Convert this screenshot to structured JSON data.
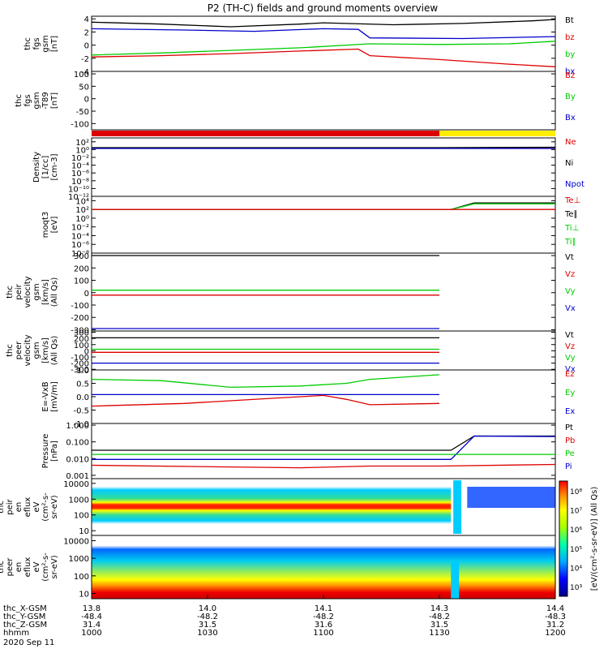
{
  "title": "P2 (TH-C) fields and ground moments overview",
  "date": "2020 Sep 11",
  "colors": {
    "black": "#000000",
    "red": "#dd0000",
    "green": "#00cc00",
    "blue": "#0000cc",
    "yellow": "#ffee00"
  },
  "chart_data": {
    "type": "line",
    "panels": [
      {
        "id": "fgs",
        "ylabel": [
          "thc",
          "fgs",
          "gsm",
          "[nT]"
        ],
        "ylim": [
          -4,
          4.4
        ],
        "ticks": [
          {
            "v": 4,
            "t": "4"
          },
          {
            "v": 2,
            "t": "2"
          },
          {
            "v": 0,
            "t": "0"
          },
          {
            "v": -2,
            "t": "-2"
          },
          {
            "v": -4,
            "t": "-4"
          }
        ],
        "legend": [
          {
            "t": "Bt",
            "c": "black"
          },
          {
            "t": "bz",
            "c": "red"
          },
          {
            "t": "by",
            "c": "green"
          },
          {
            "t": "bx",
            "c": "blue"
          }
        ],
        "series": [
          {
            "name": "Bt",
            "color": "black",
            "x": [
              10.0,
              10.3,
              10.6,
              10.9,
              11.0,
              11.3,
              11.6,
              11.9,
              12.0
            ],
            "y": [
              3.5,
              3.2,
              2.8,
              3.2,
              3.4,
              3.1,
              3.3,
              3.7,
              3.9
            ]
          },
          {
            "name": "bx",
            "color": "blue",
            "x": [
              10.0,
              10.4,
              10.7,
              11.0,
              11.15,
              11.2,
              11.6,
              12.0
            ],
            "y": [
              2.5,
              2.3,
              2.1,
              2.5,
              2.4,
              1.1,
              1.0,
              1.3
            ]
          },
          {
            "name": "by",
            "color": "green",
            "x": [
              10.0,
              10.3,
              10.6,
              10.9,
              11.2,
              11.5,
              11.8,
              12.0
            ],
            "y": [
              -1.5,
              -1.2,
              -0.8,
              -0.4,
              0.2,
              0.1,
              0.2,
              0.6
            ]
          },
          {
            "name": "bz",
            "color": "red",
            "x": [
              10.0,
              10.3,
              10.6,
              10.9,
              11.15,
              11.2,
              11.5,
              11.8,
              12.0
            ],
            "y": [
              -1.8,
              -1.6,
              -1.3,
              -0.9,
              -0.6,
              -1.6,
              -2.2,
              -2.9,
              -3.3
            ]
          }
        ]
      },
      {
        "id": "fgs_t89",
        "ylabel": [
          "thc",
          "fgs",
          "gsm",
          "-T89",
          "[nT]"
        ],
        "ylim": [
          -125,
          110
        ],
        "ticks": [
          {
            "v": 100,
            "t": "100"
          },
          {
            "v": 50,
            "t": "50"
          },
          {
            "v": 0,
            "t": "0"
          },
          {
            "v": -50,
            "t": "-50"
          },
          {
            "v": -100,
            "t": "-100"
          }
        ],
        "legend": [
          {
            "t": "Bz",
            "c": "red"
          },
          {
            "t": "By",
            "c": "green"
          },
          {
            "t": "Bx",
            "c": "blue"
          }
        ],
        "series": []
      },
      {
        "id": "density",
        "ylabel": [
          "Density",
          "[1/cc]",
          "[cm-3]"
        ],
        "ylim": [
          -12,
          3
        ],
        "log": true,
        "ticks": [
          {
            "v": 2,
            "t": "10²"
          },
          {
            "v": 0,
            "t": "10⁰"
          },
          {
            "v": -2,
            "t": "10⁻²"
          },
          {
            "v": -4,
            "t": "10⁻⁴"
          },
          {
            "v": -6,
            "t": "10⁻⁶"
          },
          {
            "v": -8,
            "t": "10⁻⁸"
          },
          {
            "v": -10,
            "t": "10⁻¹⁰"
          },
          {
            "v": -12,
            "t": "10⁻¹²"
          }
        ],
        "legend": [
          {
            "t": "Ne",
            "c": "red"
          },
          {
            "t": "Ni",
            "c": "black"
          },
          {
            "t": "Npot",
            "c": "blue"
          }
        ],
        "series": [
          {
            "name": "Ne",
            "color": "red",
            "x": [
              10.0,
              11.5,
              12.0
            ],
            "y": [
              0.4,
              0.4,
              0.5
            ]
          },
          {
            "name": "Ni",
            "color": "black",
            "x": [
              10.0,
              11.5,
              12.0
            ],
            "y": [
              0.5,
              0.5,
              0.6
            ]
          },
          {
            "name": "Npot",
            "color": "blue",
            "x": [
              10.0,
              11.5,
              12.0
            ],
            "y": [
              0.3,
              0.3,
              0.3
            ]
          }
        ]
      },
      {
        "id": "temp",
        "ylabel": [
          "moqt3",
          "[eV]"
        ],
        "ylim": [
          -8,
          5
        ],
        "log": true,
        "ticks": [
          {
            "v": 4,
            "t": "10⁴"
          },
          {
            "v": 2,
            "t": "10²"
          },
          {
            "v": 0,
            "t": "10⁰"
          },
          {
            "v": -2,
            "t": "10⁻²"
          },
          {
            "v": -4,
            "t": "10⁻⁴"
          },
          {
            "v": -6,
            "t": "10⁻⁶"
          },
          {
            "v": -8,
            "t": "10⁻⁸"
          }
        ],
        "legend": [
          {
            "t": "Te⊥",
            "c": "red"
          },
          {
            "t": "Te∥",
            "c": "black"
          },
          {
            "t": "Ti⊥",
            "c": "green"
          },
          {
            "t": "Ti∥",
            "c": "green"
          }
        ],
        "series": [
          {
            "name": "Ti",
            "color": "black",
            "x": [
              10.0,
              11.55,
              11.65,
              12.0
            ],
            "y": [
              2.0,
              2.0,
              3.5,
              3.5
            ]
          },
          {
            "name": "Te",
            "color": "green",
            "x": [
              10.0,
              11.55,
              11.65,
              12.0
            ],
            "y": [
              2.0,
              2.0,
              3.3,
              3.3
            ]
          },
          {
            "name": "Tex",
            "color": "red",
            "x": [
              10.0,
              12.0
            ],
            "y": [
              2.0,
              2.0
            ]
          }
        ]
      },
      {
        "id": "peir_v",
        "ylabel": [
          "thc",
          "peir",
          "velocity",
          "gsm",
          "[km/s]",
          "(All Qs)"
        ],
        "ylim": [
          -310,
          320
        ],
        "ticks": [
          {
            "v": 300,
            "t": "300"
          },
          {
            "v": 200,
            "t": "200"
          },
          {
            "v": 100,
            "t": "100"
          },
          {
            "v": 0,
            "t": "0"
          },
          {
            "v": -100,
            "t": "-100"
          },
          {
            "v": -200,
            "t": "-200"
          },
          {
            "v": -300,
            "t": "-300"
          }
        ],
        "legend": [
          {
            "t": "Vt",
            "c": "black"
          },
          {
            "t": "Vz",
            "c": "red"
          },
          {
            "t": "Vy",
            "c": "green"
          },
          {
            "t": "Vx",
            "c": "blue"
          }
        ],
        "series": [
          {
            "name": "Vt",
            "color": "black",
            "x": [
              10.0,
              11.5
            ],
            "y": [
              300,
              300
            ]
          },
          {
            "name": "Vy",
            "color": "green",
            "x": [
              10.0,
              11.5
            ],
            "y": [
              20,
              20
            ]
          },
          {
            "name": "Vz",
            "color": "red",
            "x": [
              10.0,
              11.5
            ],
            "y": [
              -20,
              -20
            ]
          },
          {
            "name": "Vx",
            "color": "blue",
            "x": [
              10.0,
              11.5
            ],
            "y": [
              -290,
              -290
            ]
          }
        ]
      },
      {
        "id": "peer_v",
        "ylabel": [
          "thc",
          "peer",
          "velocity",
          "gsm",
          "[km/s]",
          "(All Qs)"
        ],
        "ylim": [
          -310,
          320
        ],
        "ticks": [
          {
            "v": 300,
            "t": "300"
          },
          {
            "v": 200,
            "t": "200"
          },
          {
            "v": 100,
            "t": "100"
          },
          {
            "v": 0,
            "t": "0"
          },
          {
            "v": -100,
            "t": "-100"
          },
          {
            "v": -200,
            "t": "-200"
          },
          {
            "v": -300,
            "t": "-300"
          }
        ],
        "legend": [
          {
            "t": "Vt",
            "c": "black"
          },
          {
            "t": "Vz",
            "c": "red"
          },
          {
            "t": "Vy",
            "c": "green"
          },
          {
            "t": "Vx",
            "c": "blue"
          }
        ],
        "series": [
          {
            "name": "Vt",
            "color": "black",
            "x": [
              10.0,
              11.5
            ],
            "y": [
              210,
              210
            ]
          },
          {
            "name": "Vy",
            "color": "green",
            "x": [
              10.0,
              11.5
            ],
            "y": [
              25,
              25
            ]
          },
          {
            "name": "Vz",
            "color": "red",
            "x": [
              10.0,
              11.5
            ],
            "y": [
              -25,
              -25
            ]
          },
          {
            "name": "Vx",
            "color": "blue",
            "x": [
              10.0,
              11.5
            ],
            "y": [
              -200,
              -200
            ]
          }
        ]
      },
      {
        "id": "e_field",
        "ylabel": [
          "E=-VxB",
          "[mV/m]"
        ],
        "ylim": [
          -1.0,
          1.0
        ],
        "ticks": [
          {
            "v": 1.0,
            "t": "1.0"
          },
          {
            "v": 0.5,
            "t": "0.5"
          },
          {
            "v": 0.0,
            "t": "0.0"
          },
          {
            "v": -0.5,
            "t": "-0.5"
          },
          {
            "v": -1.0,
            "t": "-1.0"
          }
        ],
        "legend": [
          {
            "t": "Ez",
            "c": "red"
          },
          {
            "t": "Ey",
            "c": "green"
          },
          {
            "t": "Ex",
            "c": "blue"
          }
        ],
        "series": [
          {
            "name": "Ey",
            "color": "green",
            "x": [
              10.0,
              10.3,
              10.6,
              10.9,
              11.1,
              11.2,
              11.5
            ],
            "y": [
              0.65,
              0.6,
              0.35,
              0.4,
              0.5,
              0.65,
              0.82
            ]
          },
          {
            "name": "Ex",
            "color": "blue",
            "x": [
              10.0,
              11.5
            ],
            "y": [
              0.08,
              0.08
            ]
          },
          {
            "name": "Ez",
            "color": "red",
            "x": [
              10.0,
              10.4,
              10.8,
              11.0,
              11.1,
              11.2,
              11.5
            ],
            "y": [
              -0.35,
              -0.25,
              -0.05,
              0.05,
              -0.1,
              -0.3,
              -0.25
            ]
          }
        ]
      },
      {
        "id": "pressure",
        "ylabel": [
          "Pressure",
          "[nPa]"
        ],
        "ylim": [
          -3.2,
          0.1
        ],
        "log": true,
        "ticks": [
          {
            "v": 0,
            "t": "1.000"
          },
          {
            "v": -1,
            "t": "0.100"
          },
          {
            "v": -2,
            "t": "0.010"
          },
          {
            "v": -3,
            "t": "0.001"
          }
        ],
        "legend": [
          {
            "t": "Pt",
            "c": "black"
          },
          {
            "t": "Pb",
            "c": "red"
          },
          {
            "t": "Pe",
            "c": "green"
          },
          {
            "t": "Pi",
            "c": "blue"
          }
        ],
        "series": [
          {
            "name": "Pt",
            "color": "black",
            "x": [
              10.0,
              11.55,
              11.65,
              12.0
            ],
            "y": [
              -1.5,
              -1.5,
              -0.65,
              -0.65
            ]
          },
          {
            "name": "Pi",
            "color": "blue",
            "x": [
              10.0,
              11.55,
              11.65,
              12.0
            ],
            "y": [
              -2.05,
              -2.05,
              -0.65,
              -0.68
            ]
          },
          {
            "name": "Pe",
            "color": "green",
            "x": [
              10.0,
              12.0
            ],
            "y": [
              -1.75,
              -1.75
            ]
          },
          {
            "name": "Pb",
            "color": "red",
            "x": [
              10.0,
              10.6,
              10.9,
              11.2,
              11.5,
              12.0
            ],
            "y": [
              -2.4,
              -2.5,
              -2.55,
              -2.45,
              -2.45,
              -2.35
            ]
          }
        ]
      }
    ],
    "spectrograms": [
      {
        "id": "peir_en",
        "ylabel": [
          "thc",
          "peir",
          "en",
          "eflux",
          "eV",
          "(cm²-s-",
          "sr-eV)"
        ],
        "ticks": [
          {
            "v": 4,
            "t": "10000"
          },
          {
            "v": 3,
            "t": "1000"
          },
          {
            "v": 2,
            "t": "100"
          },
          {
            "v": 1,
            "t": "10"
          }
        ]
      },
      {
        "id": "peer_en",
        "ylabel": [
          "thc",
          "peer",
          "en",
          "eflux",
          "eV",
          "(cm²-s-",
          "sr-eV)"
        ],
        "ticks": [
          {
            "v": 4,
            "t": "10000"
          },
          {
            "v": 3,
            "t": "1000"
          },
          {
            "v": 2,
            "t": "100"
          },
          {
            "v": 1,
            "t": "10"
          }
        ]
      }
    ],
    "colorbar": {
      "label": "[eV/(cm²-s-sr-eV)] (All Qs)",
      "ticks": [
        {
          "v": 8,
          "t": "10⁸"
        },
        {
          "v": 7,
          "t": "10⁷"
        },
        {
          "v": 6,
          "t": "10⁶"
        },
        {
          "v": 5,
          "t": "10⁵"
        },
        {
          "v": 4,
          "t": "10⁴"
        },
        {
          "v": 3,
          "t": "10³"
        }
      ]
    },
    "x_axis": {
      "rows": [
        {
          "label": "thc_X-GSM",
          "values": [
            "13.8",
            "14.0",
            "14.1",
            "14.3",
            "14.4"
          ]
        },
        {
          "label": "thc_Y-GSM",
          "values": [
            "-48.4",
            "-48.2",
            "-48.2",
            "-48.2",
            "-48.3"
          ]
        },
        {
          "label": "thc_Z-GSM",
          "values": [
            "31.4",
            "31.5",
            "31.6",
            "31.5",
            "31.2"
          ]
        },
        {
          "label": "hhmm",
          "values": [
            "1000",
            "1030",
            "1100",
            "1130",
            "1200"
          ]
        }
      ],
      "ticks": [
        10.0,
        10.5,
        11.0,
        11.5,
        12.0
      ]
    },
    "status_bar": {
      "red_until": 11.5,
      "yellow_from": 11.5
    }
  }
}
